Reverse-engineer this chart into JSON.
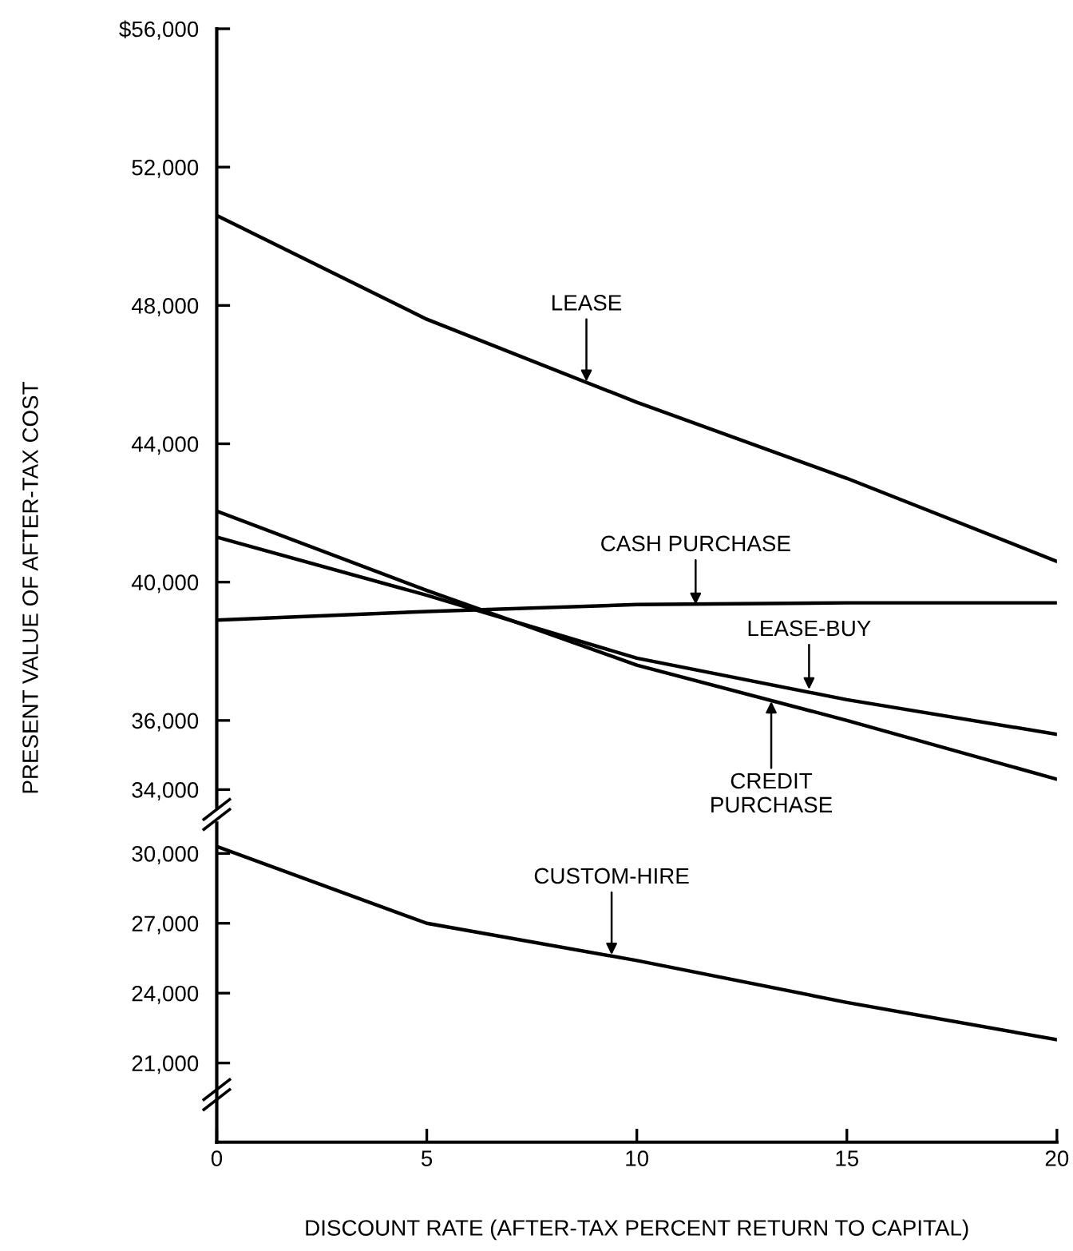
{
  "chart_data": [
    {
      "type": "line",
      "ylabel": "PRESENT VALUE OF AFTER-TAX COST",
      "xlim": [
        0,
        20
      ],
      "ylim": [
        33500,
        56000
      ],
      "tick_labels": "y",
      "grid": false,
      "legend": false,
      "yticks": [
        {
          "value": 56000,
          "label": "$56,000"
        },
        {
          "value": 52000,
          "label": "52,000"
        },
        {
          "value": 48000,
          "label": "48,000"
        },
        {
          "value": 44000,
          "label": "44,000"
        },
        {
          "value": 40000,
          "label": "40,000"
        },
        {
          "value": 36000,
          "label": "36,000"
        },
        {
          "value": 34000,
          "label": "34,000"
        }
      ],
      "x": [
        0,
        5,
        10,
        15,
        20
      ],
      "series": [
        {
          "color": "#000000",
          "values": [
            50600,
            47600,
            45200,
            43000,
            40600
          ]
        },
        {
          "color": "#000000",
          "values": [
            38900,
            39150,
            39350,
            39400,
            39400
          ]
        },
        {
          "color": "#000000",
          "values": [
            41300,
            39620,
            37800,
            36600,
            35600
          ]
        },
        {
          "color": "#000000",
          "values": [
            42050,
            39760,
            37600,
            36000,
            34300
          ]
        }
      ],
      "annotations": [
        {
          "text": "LEASE",
          "x": 8.8,
          "y": 45800
        },
        {
          "text": "CASH PURCHASE",
          "x": 11.4,
          "y": 39350
        },
        {
          "text": "LEASE-BUY",
          "x": 14.1,
          "y": 36900
        },
        {
          "text": "CREDIT\nPURCHASE",
          "x": 13.2,
          "y": 36550
        }
      ]
    },
    {
      "type": "line",
      "xlabel": "DISCOUNT RATE (AFTER-TAX PERCENT RETURN TO CAPITAL)",
      "xlim": [
        0,
        20
      ],
      "ylim": [
        17600,
        31300
      ],
      "grid": false,
      "legend": false,
      "xticks": [
        0,
        5,
        10,
        15,
        20
      ],
      "yticks": [
        {
          "value": 30000,
          "label": "30,000"
        },
        {
          "value": 27000,
          "label": "27,000"
        },
        {
          "value": 24000,
          "label": "24,000"
        },
        {
          "value": 21000,
          "label": "21,000"
        }
      ],
      "x": [
        0,
        5,
        10,
        15,
        20
      ],
      "series": [
        {
          "color": "#000000",
          "values": [
            30300,
            27000,
            25400,
            23600,
            22000
          ]
        }
      ],
      "annotations": [
        {
          "text": "CUSTOM-HIRE",
          "x": 9.4,
          "y": 25650
        }
      ]
    }
  ]
}
